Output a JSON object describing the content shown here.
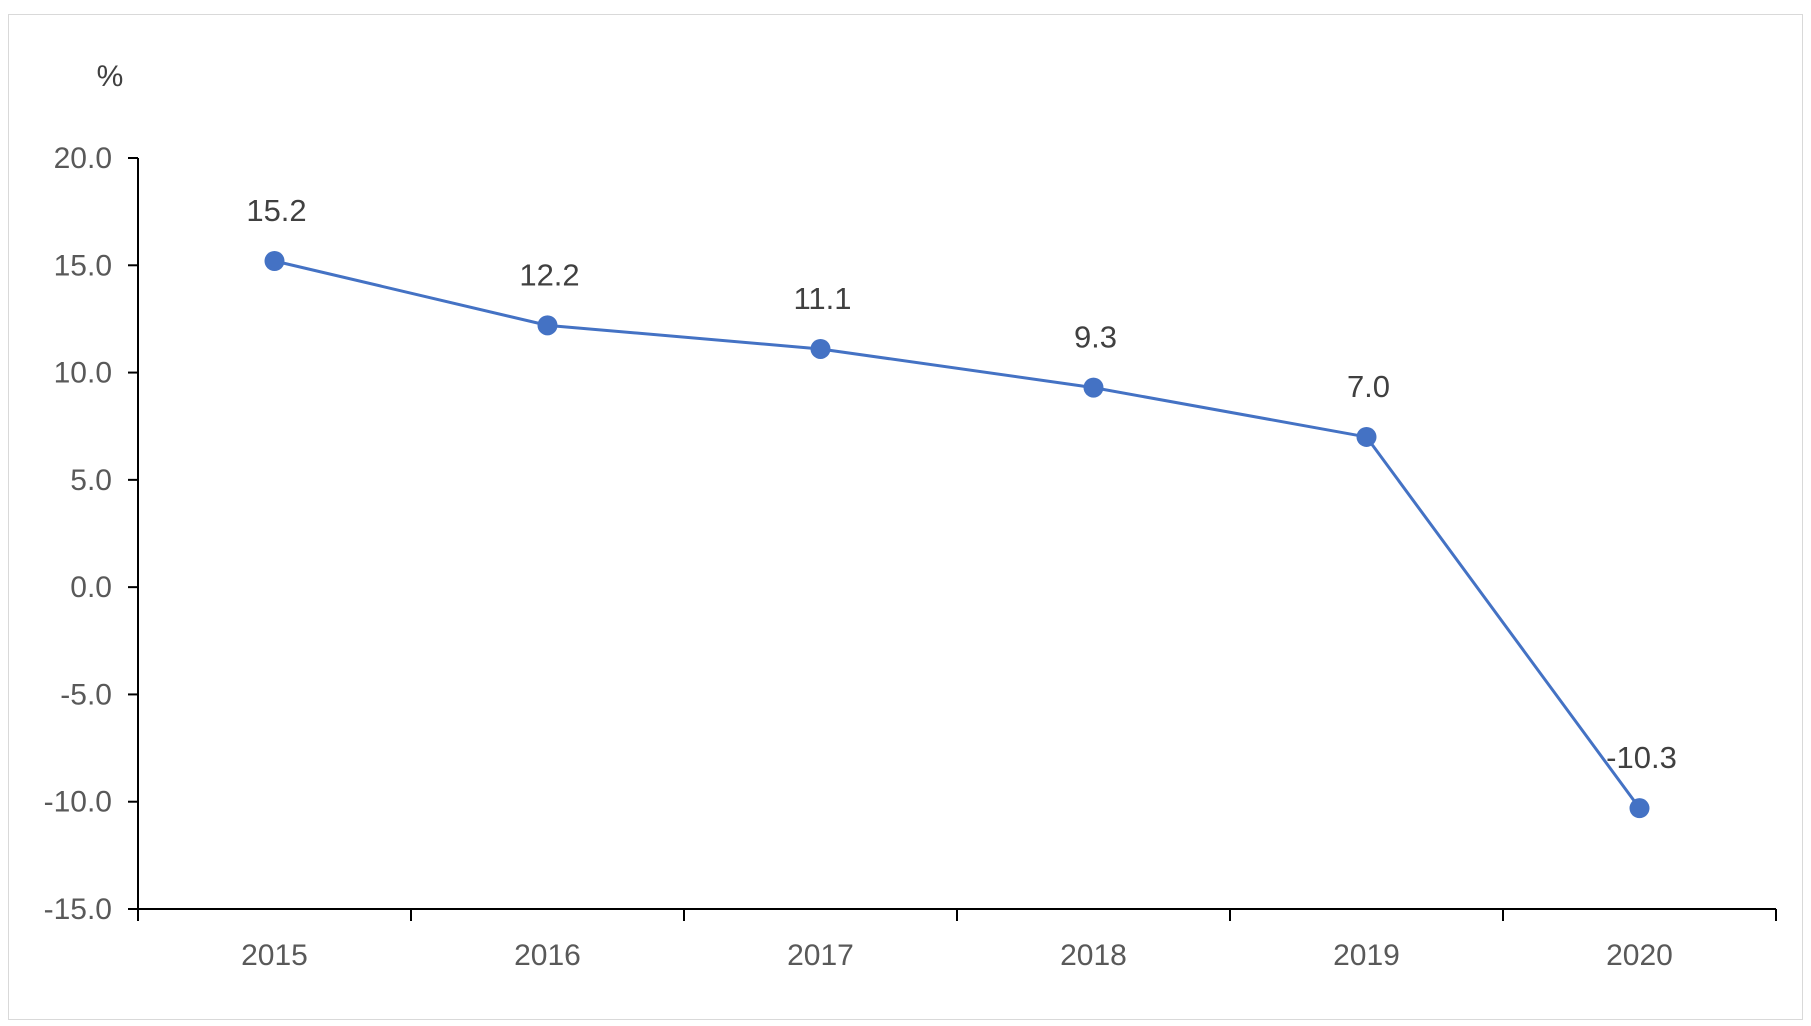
{
  "chart_data": {
    "type": "line",
    "title": "",
    "xlabel": "",
    "ylabel": "%",
    "categories": [
      "2015",
      "2016",
      "2017",
      "2018",
      "2019",
      "2020"
    ],
    "series": [
      {
        "values": [
          15.2,
          12.2,
          11.1,
          9.3,
          7.0,
          -10.3
        ],
        "labels": [
          "15.2",
          "12.2",
          "11.1",
          "9.3",
          "7.0",
          "-10.3"
        ],
        "color": "#4472C4"
      }
    ],
    "ylim": [
      -15,
      20
    ],
    "yticks": [
      20,
      15,
      10,
      5,
      0,
      -5,
      -10,
      -15
    ],
    "ytick_labels": [
      "20.0",
      "15.0",
      "10.0",
      "5.0",
      "0.0",
      "-5.0",
      "-10.0",
      "-15.0"
    ],
    "grid": false,
    "legend": "none",
    "axis_color": "#000000",
    "text_color": "#595959"
  }
}
